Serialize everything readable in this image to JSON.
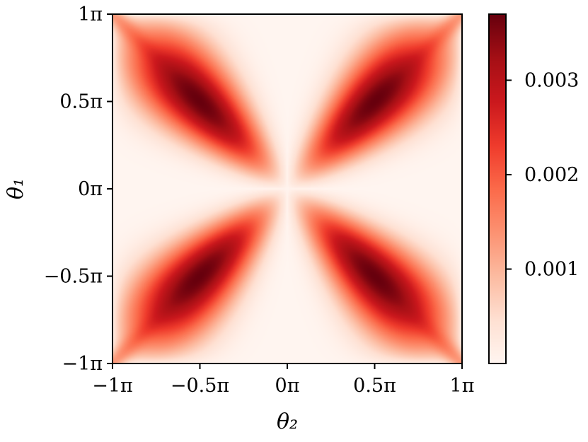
{
  "chart_data": {
    "type": "heatmap",
    "title": "",
    "xlabel": "θ₂",
    "ylabel": "θ₁",
    "x_range": [
      "−1π",
      "1π"
    ],
    "y_range": [
      "−1π",
      "1π"
    ],
    "x_ticks": [
      "−1π",
      "−0.5π",
      "0π",
      "0.5π",
      "1π"
    ],
    "y_ticks": [
      "1π",
      "0.5π",
      "0π",
      "−0.5π",
      "−1π"
    ],
    "x_tick_values": [
      -1,
      -0.5,
      0,
      0.5,
      1
    ],
    "y_tick_values": [
      1,
      0.5,
      0,
      -0.5,
      -1
    ],
    "colormap": "Reds",
    "colormap_stops": [
      "#fff5f0",
      "#fee0d2",
      "#fcbba1",
      "#fc9272",
      "#fb6a4a",
      "#ef3b2c",
      "#cb181d",
      "#a50f15",
      "#67000d"
    ],
    "value_range": [
      0,
      0.0037
    ],
    "colorbar": {
      "ticks": [
        "0.003",
        "0.002",
        "0.001"
      ],
      "tick_values": [
        0.003,
        0.002,
        0.001
      ]
    },
    "peaks": [
      {
        "theta2": -0.45,
        "theta1": 0.45,
        "value": 0.0037
      },
      {
        "theta2": 0.45,
        "theta1": 0.45,
        "value": 0.0037
      },
      {
        "theta2": -0.45,
        "theta1": -0.45,
        "value": 0.0037
      },
      {
        "theta2": 0.45,
        "theta1": -0.45,
        "value": 0.0037
      }
    ],
    "grid": false
  }
}
